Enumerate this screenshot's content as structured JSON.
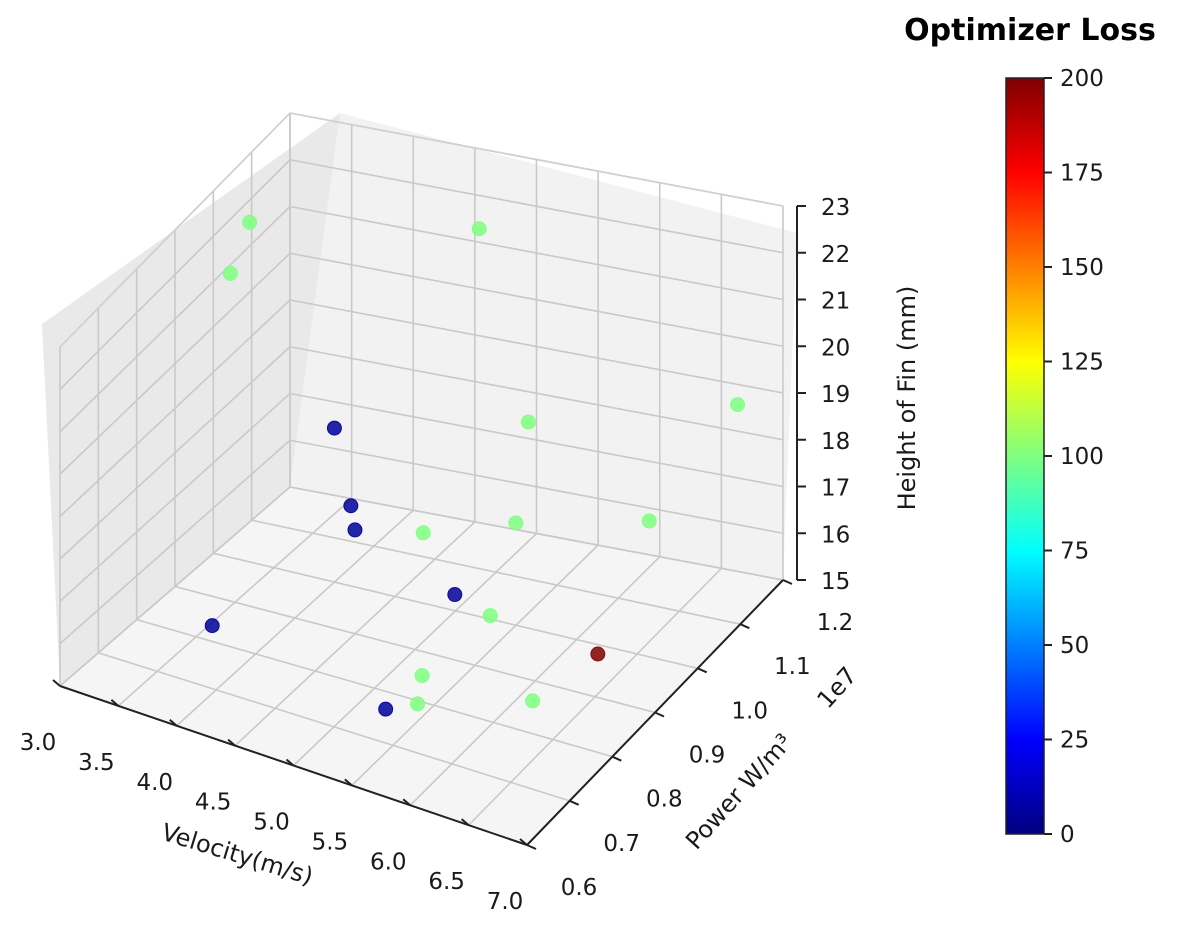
{
  "chart_data": {
    "type": "scatter",
    "projection": "3d",
    "title": "Optimizer Loss",
    "xlabel": "Velocity(m/s)",
    "ylabel": "Power W/m³",
    "zlabel": "Height of Fin (mm)",
    "y_offset_label": "1e7",
    "xlim": [
      3.0,
      7.0
    ],
    "ylim": [
      0.6,
      1.2
    ],
    "zlim": [
      15,
      23
    ],
    "x_ticks": [
      "3.0",
      "3.5",
      "4.0",
      "4.5",
      "5.0",
      "5.5",
      "6.0",
      "6.5",
      "7.0"
    ],
    "y_ticks": [
      "0.6",
      "0.7",
      "0.8",
      "0.9",
      "1.0",
      "1.1",
      "1.2"
    ],
    "z_ticks": [
      "15",
      "16",
      "17",
      "18",
      "19",
      "20",
      "21",
      "22",
      "23"
    ],
    "grid": true,
    "colormap": "jet",
    "colorbar": {
      "title": "Optimizer Loss",
      "min": 0,
      "max": 200,
      "ticks": [
        "0",
        "25",
        "50",
        "75",
        "100",
        "125",
        "150",
        "175",
        "200"
      ],
      "stops": [
        "#00007f",
        "#0000ff",
        "#007fff",
        "#00ffff",
        "#7fff7f",
        "#ffff00",
        "#ff7f00",
        "#ff0000",
        "#7f0000"
      ]
    },
    "points": [
      {
        "x": 3.3,
        "y": 1.0,
        "z": 22.5,
        "loss": 100
      },
      {
        "x": 3.3,
        "y": 0.95,
        "z": 21.8,
        "loss": 100
      },
      {
        "x": 4.6,
        "y": 1.18,
        "z": 21.5,
        "loss": 100
      },
      {
        "x": 5.5,
        "y": 1.03,
        "z": 19.2,
        "loss": 100
      },
      {
        "x": 6.7,
        "y": 1.18,
        "z": 18.8,
        "loss": 100
      },
      {
        "x": 6.6,
        "y": 1.0,
        "z": 18.0,
        "loss": 100
      },
      {
        "x": 5.6,
        "y": 0.97,
        "z": 17.6,
        "loss": 100
      },
      {
        "x": 5.8,
        "y": 0.85,
        "z": 16.8,
        "loss": 100
      },
      {
        "x": 4.9,
        "y": 0.95,
        "z": 17.1,
        "loss": 100
      },
      {
        "x": 6.4,
        "y": 0.78,
        "z": 16.0,
        "loss": 100
      },
      {
        "x": 5.4,
        "y": 0.8,
        "z": 15.6,
        "loss": 100
      },
      {
        "x": 5.5,
        "y": 0.76,
        "z": 15.4,
        "loss": 100
      },
      {
        "x": 6.7,
        "y": 0.85,
        "z": 16.6,
        "loss": 200
      },
      {
        "x": 4.0,
        "y": 1.0,
        "z": 18.4,
        "loss": 5
      },
      {
        "x": 4.3,
        "y": 0.95,
        "z": 17.3,
        "loss": 5
      },
      {
        "x": 4.4,
        "y": 0.93,
        "z": 17.0,
        "loss": 5
      },
      {
        "x": 5.4,
        "y": 0.88,
        "z": 16.7,
        "loss": 5
      },
      {
        "x": 3.8,
        "y": 0.75,
        "z": 15.9,
        "loss": 5
      },
      {
        "x": 5.3,
        "y": 0.74,
        "z": 15.3,
        "loss": 5
      }
    ]
  }
}
